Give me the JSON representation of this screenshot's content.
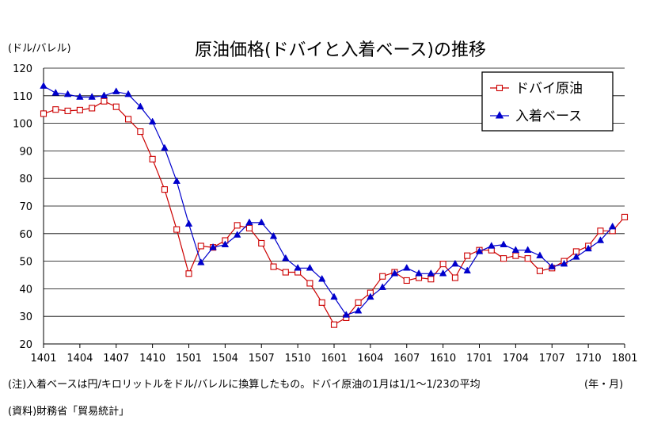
{
  "chart_data": {
    "type": "line",
    "title": "原油価格(ドバイと入着ベース)の推移",
    "ylabel": "(ドル/バレル)",
    "xlabel": "(年・月)",
    "ylim": [
      20,
      120
    ],
    "yticks": [
      20,
      30,
      40,
      50,
      60,
      70,
      80,
      90,
      100,
      110,
      120
    ],
    "xticks": [
      "1401",
      "1404",
      "1407",
      "1410",
      "1501",
      "1504",
      "1507",
      "1510",
      "1601",
      "1604",
      "1607",
      "1610",
      "1701",
      "1704",
      "1707",
      "1710",
      "1801"
    ],
    "legend_position": "top-right",
    "grid": true,
    "x": [
      "1401",
      "1402",
      "1403",
      "1404",
      "1405",
      "1406",
      "1407",
      "1408",
      "1409",
      "1410",
      "1411",
      "1412",
      "1501",
      "1502",
      "1503",
      "1504",
      "1505",
      "1506",
      "1507",
      "1508",
      "1509",
      "1510",
      "1511",
      "1512",
      "1601",
      "1602",
      "1603",
      "1604",
      "1605",
      "1606",
      "1607",
      "1608",
      "1609",
      "1610",
      "1611",
      "1612",
      "1701",
      "1702",
      "1703",
      "1704",
      "1705",
      "1706",
      "1707",
      "1708",
      "1709",
      "1710",
      "1711",
      "1712",
      "1801"
    ],
    "series": [
      {
        "name": "ドバイ原油",
        "color": "#cc0000",
        "marker": "square-open",
        "values": [
          103.5,
          105,
          104.5,
          104.8,
          105.5,
          108,
          106,
          101.5,
          97,
          87,
          76,
          61.5,
          45.5,
          55.5,
          55,
          57.5,
          63,
          62,
          56.5,
          48,
          46,
          46,
          42,
          35,
          27,
          29.5,
          35,
          38.5,
          44.5,
          46,
          43,
          44,
          43.5,
          49,
          44,
          52,
          54,
          54,
          51,
          52,
          51,
          46.5,
          47.5,
          50,
          53.5,
          55.5,
          61,
          61,
          66
        ]
      },
      {
        "name": "入着ベース",
        "color": "#0000cc",
        "marker": "triangle-filled",
        "values": [
          113.5,
          111,
          110.5,
          109.5,
          109.5,
          110,
          111.5,
          110.5,
          106,
          100.5,
          91,
          79,
          63.5,
          49.5,
          55,
          56,
          59.5,
          64,
          64,
          59,
          51,
          47.5,
          47.5,
          43.5,
          37,
          30.5,
          32,
          37,
          40.5,
          45.5,
          47.5,
          45.5,
          45.5,
          45.5,
          49,
          46.5,
          53.5,
          55.5,
          56,
          54,
          54,
          52,
          48,
          49,
          51.5,
          54.5,
          57.5,
          62.5,
          null
        ]
      }
    ]
  },
  "notes": {
    "note": "(注)入着ベースは円/キロリットルをドル/バレルに換算したもの。ドバイ原油の1月は1/1〜1/23の平均",
    "source": "(資料)財務省「貿易統計」"
  }
}
